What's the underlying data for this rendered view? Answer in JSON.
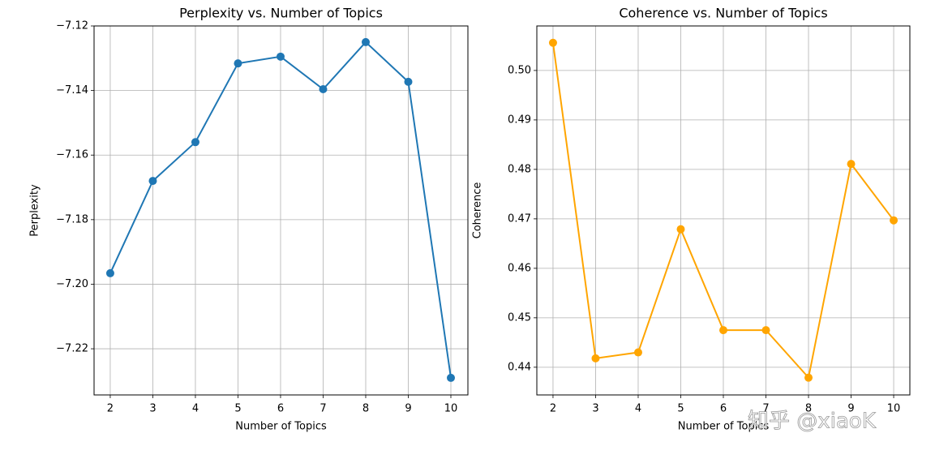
{
  "chart_data": [
    {
      "type": "line",
      "title": "Perplexity vs. Number of Topics",
      "xlabel": "Number of Topics",
      "ylabel": "Perplexity",
      "x": [
        2,
        3,
        4,
        5,
        6,
        7,
        8,
        9,
        10
      ],
      "series": [
        {
          "name": "Perplexity",
          "color": "#1f77b4",
          "values": [
            -7.1966,
            -7.168,
            -7.156,
            -7.1316,
            -7.1295,
            -7.1396,
            -7.125,
            -7.1373,
            -7.229
          ]
        }
      ],
      "xlim": [
        1.62,
        10.4
      ],
      "xticks": [
        2,
        3,
        4,
        5,
        6,
        7,
        8,
        9,
        10
      ],
      "ylim": [
        -7.2343,
        -7.12
      ],
      "yticks": [
        {
          "value": -7.22,
          "label": "−7.22"
        },
        {
          "value": -7.2,
          "label": "−7.20"
        },
        {
          "value": -7.18,
          "label": "−7.18"
        },
        {
          "value": -7.16,
          "label": "−7.16"
        },
        {
          "value": -7.14,
          "label": "−7.14"
        },
        {
          "value": -7.12,
          "label": "−7.12"
        }
      ],
      "grid": true
    },
    {
      "type": "line",
      "title": "Coherence vs. Number of Topics",
      "xlabel": "Number of Topics",
      "ylabel": "Coherence",
      "x": [
        2,
        3,
        4,
        5,
        6,
        7,
        8,
        9,
        10
      ],
      "series": [
        {
          "name": "Coherence",
          "color": "#ffa500",
          "values": [
            0.5056,
            0.4418,
            0.443,
            0.4679,
            0.4475,
            0.4475,
            0.4379,
            0.4811,
            0.4697
          ]
        }
      ],
      "xlim": [
        1.62,
        10.38
      ],
      "xticks": [
        2,
        3,
        4,
        5,
        6,
        7,
        8,
        9,
        10
      ],
      "ylim": [
        0.4344,
        0.509
      ],
      "yticks": [
        0.44,
        0.45,
        0.46,
        0.47,
        0.48,
        0.49,
        {
          "value": 0.5,
          "label": "0.50"
        }
      ],
      "grid": true
    }
  ],
  "watermark": "知乎 @xiaoK"
}
